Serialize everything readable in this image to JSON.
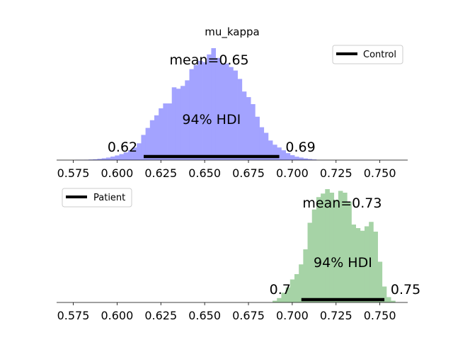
{
  "chart_data": [
    {
      "type": "histogram",
      "title": "mu_kappa",
      "series_name": "Control",
      "color": "#a3a3ff",
      "xticks": [
        0.575,
        0.6,
        0.625,
        0.65,
        0.675,
        0.7,
        0.725,
        0.75
      ],
      "xtick_labels": [
        "0.575",
        "0.600",
        "0.625",
        "0.650",
        "0.675",
        "0.700",
        "0.725",
        "0.750"
      ],
      "xlim": [
        0.5655,
        0.7659
      ],
      "bin_width": 0.0025,
      "bins": [
        {
          "x": 0.5775,
          "h": 0.3
        },
        {
          "x": 0.58,
          "h": 0.3
        },
        {
          "x": 0.5825,
          "h": 0.5
        },
        {
          "x": 0.585,
          "h": 0.8
        },
        {
          "x": 0.5875,
          "h": 1.2
        },
        {
          "x": 0.59,
          "h": 1.8
        },
        {
          "x": 0.5925,
          "h": 2.6
        },
        {
          "x": 0.595,
          "h": 3.6
        },
        {
          "x": 0.5975,
          "h": 5
        },
        {
          "x": 0.6,
          "h": 6.6
        },
        {
          "x": 0.6025,
          "h": 8.6
        },
        {
          "x": 0.605,
          "h": 11
        },
        {
          "x": 0.6075,
          "h": 14
        },
        {
          "x": 0.61,
          "h": 18
        },
        {
          "x": 0.6125,
          "h": 24
        },
        {
          "x": 0.615,
          "h": 36
        },
        {
          "x": 0.6175,
          "h": 46
        },
        {
          "x": 0.62,
          "h": 57
        },
        {
          "x": 0.6225,
          "h": 64
        },
        {
          "x": 0.625,
          "h": 74
        },
        {
          "x": 0.6275,
          "h": 81
        },
        {
          "x": 0.63,
          "h": 81
        },
        {
          "x": 0.6325,
          "h": 104
        },
        {
          "x": 0.635,
          "h": 102
        },
        {
          "x": 0.6375,
          "h": 106
        },
        {
          "x": 0.64,
          "h": 114
        },
        {
          "x": 0.6425,
          "h": 130
        },
        {
          "x": 0.645,
          "h": 136
        },
        {
          "x": 0.6475,
          "h": 142
        },
        {
          "x": 0.65,
          "h": 140
        },
        {
          "x": 0.6525,
          "h": 151
        },
        {
          "x": 0.655,
          "h": 160
        },
        {
          "x": 0.6575,
          "h": 146
        },
        {
          "x": 0.66,
          "h": 138
        },
        {
          "x": 0.6625,
          "h": 138
        },
        {
          "x": 0.665,
          "h": 133
        },
        {
          "x": 0.6675,
          "h": 128
        },
        {
          "x": 0.67,
          "h": 116
        },
        {
          "x": 0.6725,
          "h": 98
        },
        {
          "x": 0.675,
          "h": 90
        },
        {
          "x": 0.6775,
          "h": 80
        },
        {
          "x": 0.68,
          "h": 62
        },
        {
          "x": 0.6825,
          "h": 47
        },
        {
          "x": 0.685,
          "h": 39
        },
        {
          "x": 0.6875,
          "h": 28
        },
        {
          "x": 0.69,
          "h": 22
        },
        {
          "x": 0.6925,
          "h": 18
        },
        {
          "x": 0.695,
          "h": 14
        },
        {
          "x": 0.6975,
          "h": 10
        },
        {
          "x": 0.7,
          "h": 7
        },
        {
          "x": 0.7025,
          "h": 4.8
        },
        {
          "x": 0.705,
          "h": 3.6
        },
        {
          "x": 0.7075,
          "h": 2.4
        },
        {
          "x": 0.71,
          "h": 1.6
        },
        {
          "x": 0.7125,
          "h": 0.9
        }
      ],
      "ymax": 162,
      "mean_label": "mean=0.65",
      "mean_x": 0.6526,
      "hdi": [
        0.6152,
        0.6926
      ],
      "hdi_label": "94% HDI",
      "hdi_low_label": "0.62",
      "hdi_high_label": "0.69",
      "legend": {
        "label": "Control",
        "placement": "upper right"
      }
    },
    {
      "type": "histogram",
      "title": "",
      "series_name": "Patient",
      "color": "#a6d3a6",
      "xticks": [
        0.575,
        0.6,
        0.625,
        0.65,
        0.675,
        0.7,
        0.725,
        0.75
      ],
      "xtick_labels": [
        "0.575",
        "0.600",
        "0.625",
        "0.650",
        "0.675",
        "0.700",
        "0.725",
        "0.750"
      ],
      "xlim": [
        0.5655,
        0.7659
      ],
      "bin_width": 0.0025,
      "bins": [
        {
          "x": 0.69,
          "h": 2
        },
        {
          "x": 0.6925,
          "h": 5
        },
        {
          "x": 0.695,
          "h": 11
        },
        {
          "x": 0.6975,
          "h": 17
        },
        {
          "x": 0.7,
          "h": 26
        },
        {
          "x": 0.7025,
          "h": 32
        },
        {
          "x": 0.705,
          "h": 43
        },
        {
          "x": 0.7075,
          "h": 60
        },
        {
          "x": 0.71,
          "h": 90
        },
        {
          "x": 0.7125,
          "h": 105
        },
        {
          "x": 0.715,
          "h": 119
        },
        {
          "x": 0.7175,
          "h": 123
        },
        {
          "x": 0.72,
          "h": 128
        },
        {
          "x": 0.7225,
          "h": 124
        },
        {
          "x": 0.725,
          "h": 116
        },
        {
          "x": 0.7275,
          "h": 126
        },
        {
          "x": 0.73,
          "h": 124
        },
        {
          "x": 0.7325,
          "h": 114
        },
        {
          "x": 0.735,
          "h": 88
        },
        {
          "x": 0.7375,
          "h": 84
        },
        {
          "x": 0.74,
          "h": 81
        },
        {
          "x": 0.7425,
          "h": 86
        },
        {
          "x": 0.745,
          "h": 91
        },
        {
          "x": 0.7475,
          "h": 80
        },
        {
          "x": 0.75,
          "h": 46
        },
        {
          "x": 0.7525,
          "h": 18
        },
        {
          "x": 0.755,
          "h": 6
        },
        {
          "x": 0.7575,
          "h": 2
        }
      ],
      "ymax": 128,
      "mean_label": "mean=0.73",
      "mean_x": 0.7285,
      "hdi": [
        0.7052,
        0.7526
      ],
      "hdi_label": "94% HDI",
      "hdi_low_label": "0.7",
      "hdi_high_label": "0.75",
      "legend": {
        "label": "Patient",
        "placement": "upper left"
      }
    }
  ]
}
